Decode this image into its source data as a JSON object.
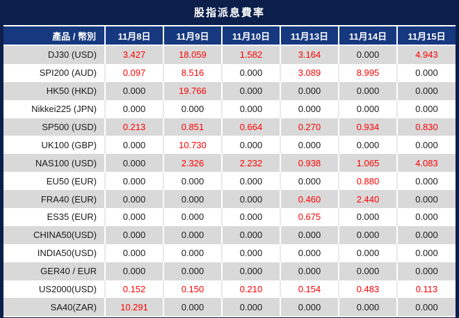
{
  "title": "股指派息費率",
  "colors": {
    "page_background": "#0b1f4a",
    "header_row_blue": "#16387f",
    "row_gray": "#d9d9d9",
    "row_white": "#ffffff",
    "header_text": "#ffffff",
    "value_positive": "#fe0000",
    "value_zero": "#1a1a1a"
  },
  "chart_data": {
    "type": "table",
    "title": "股指派息費率",
    "product_column_header": "產品 / 幣別",
    "columns": [
      "11月8日",
      "11月9日",
      "11月10日",
      "11月13日",
      "11月14日",
      "11月15日"
    ],
    "rows": [
      {
        "product": "DJ30 (USD)",
        "values": [
          "3.427",
          "18.059",
          "1.582",
          "3.164",
          "0.000",
          "4.943"
        ]
      },
      {
        "product": "SPI200 (AUD)",
        "values": [
          "0.097",
          "8.516",
          "0.000",
          "3.089",
          "8.995",
          "0.000"
        ]
      },
      {
        "product": "HK50 (HKD)",
        "values": [
          "0.000",
          "19.766",
          "0.000",
          "0.000",
          "0.000",
          "0.000"
        ]
      },
      {
        "product": "Nikkei225 (JPN)",
        "values": [
          "0.000",
          "0.000",
          "0.000",
          "0.000",
          "0.000",
          "0.000"
        ]
      },
      {
        "product": "SP500 (USD)",
        "values": [
          "0.213",
          "0.851",
          "0.664",
          "0.270",
          "0.934",
          "0.830"
        ]
      },
      {
        "product": "UK100 (GBP)",
        "values": [
          "0.000",
          "10.730",
          "0.000",
          "0.000",
          "0.000",
          "0.000"
        ]
      },
      {
        "product": "NAS100 (USD)",
        "values": [
          "0.000",
          "2.326",
          "2.232",
          "0.938",
          "1.065",
          "4.083"
        ]
      },
      {
        "product": "EU50 (EUR)",
        "values": [
          "0.000",
          "0.000",
          "0.000",
          "0.000",
          "0.880",
          "0.000"
        ]
      },
      {
        "product": "FRA40 (EUR)",
        "values": [
          "0.000",
          "0.000",
          "0.000",
          "0.460",
          "2.440",
          "0.000"
        ]
      },
      {
        "product": "ES35 (EUR)",
        "values": [
          "0.000",
          "0.000",
          "0.000",
          "0.675",
          "0.000",
          "0.000"
        ]
      },
      {
        "product": "CHINA50(USD)",
        "values": [
          "0.000",
          "0.000",
          "0.000",
          "0.000",
          "0.000",
          "0.000"
        ]
      },
      {
        "product": "INDIA50(USD)",
        "values": [
          "0.000",
          "0.000",
          "0.000",
          "0.000",
          "0.000",
          "0.000"
        ]
      },
      {
        "product": "GER40 / EUR",
        "values": [
          "0.000",
          "0.000",
          "0.000",
          "0.000",
          "0.000",
          "0.000"
        ]
      },
      {
        "product": "US2000(USD)",
        "values": [
          "0.152",
          "0.150",
          "0.210",
          "0.154",
          "0.483",
          "0.113"
        ]
      },
      {
        "product": "SA40(ZAR)",
        "values": [
          "10.291",
          "0.000",
          "0.000",
          "0.000",
          "0.000",
          "0.000"
        ]
      }
    ]
  }
}
